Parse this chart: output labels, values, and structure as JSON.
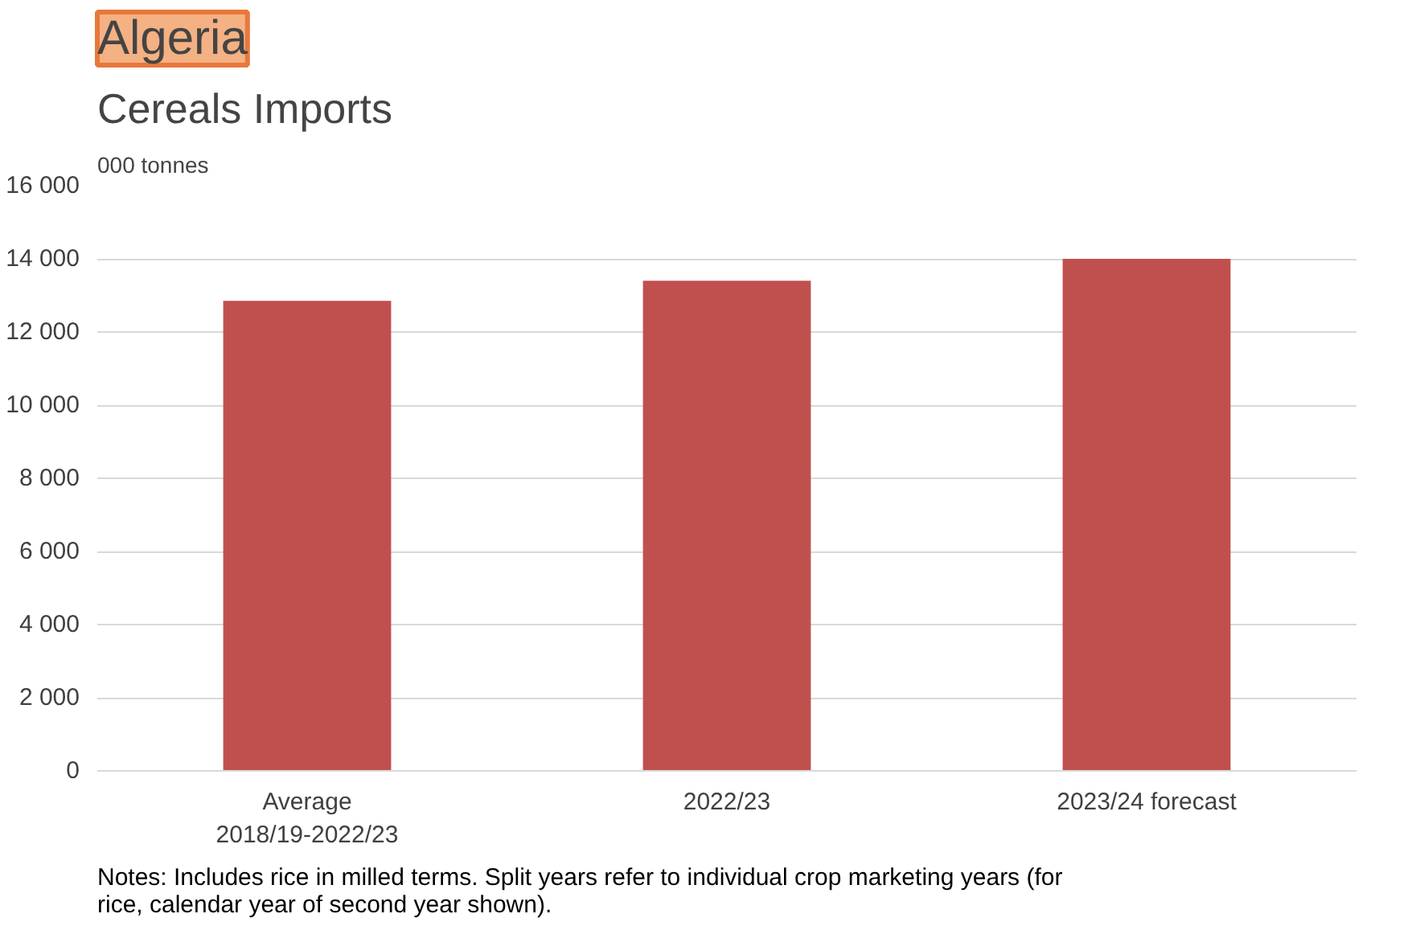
{
  "chart_data": {
    "type": "bar",
    "title": "Algeria",
    "subtitle": "Cereals Imports",
    "ylabel": "000 tonnes",
    "categories": [
      "Average 2018/19-2022/23",
      "2022/23",
      "2023/24 forecast"
    ],
    "values": [
      12850,
      13400,
      14000
    ],
    "color": "#c0504d",
    "ylim": [
      0,
      16000
    ],
    "yticks": [
      {
        "value": 0,
        "label": "0"
      },
      {
        "value": 2000,
        "label": "2 000"
      },
      {
        "value": 4000,
        "label": "4 000"
      },
      {
        "value": 6000,
        "label": "6 000"
      },
      {
        "value": 8000,
        "label": "8 000"
      },
      {
        "value": 10000,
        "label": "10 000"
      },
      {
        "value": 12000,
        "label": "12 000"
      },
      {
        "value": 14000,
        "label": "14 000"
      },
      {
        "value": 16000,
        "label": "16 000"
      }
    ],
    "grid": "y",
    "annotations": [
      "Notes: Includes rice in milled terms. Split years refer to individual crop marketing years (for rice, calendar year of second year shown)."
    ]
  }
}
